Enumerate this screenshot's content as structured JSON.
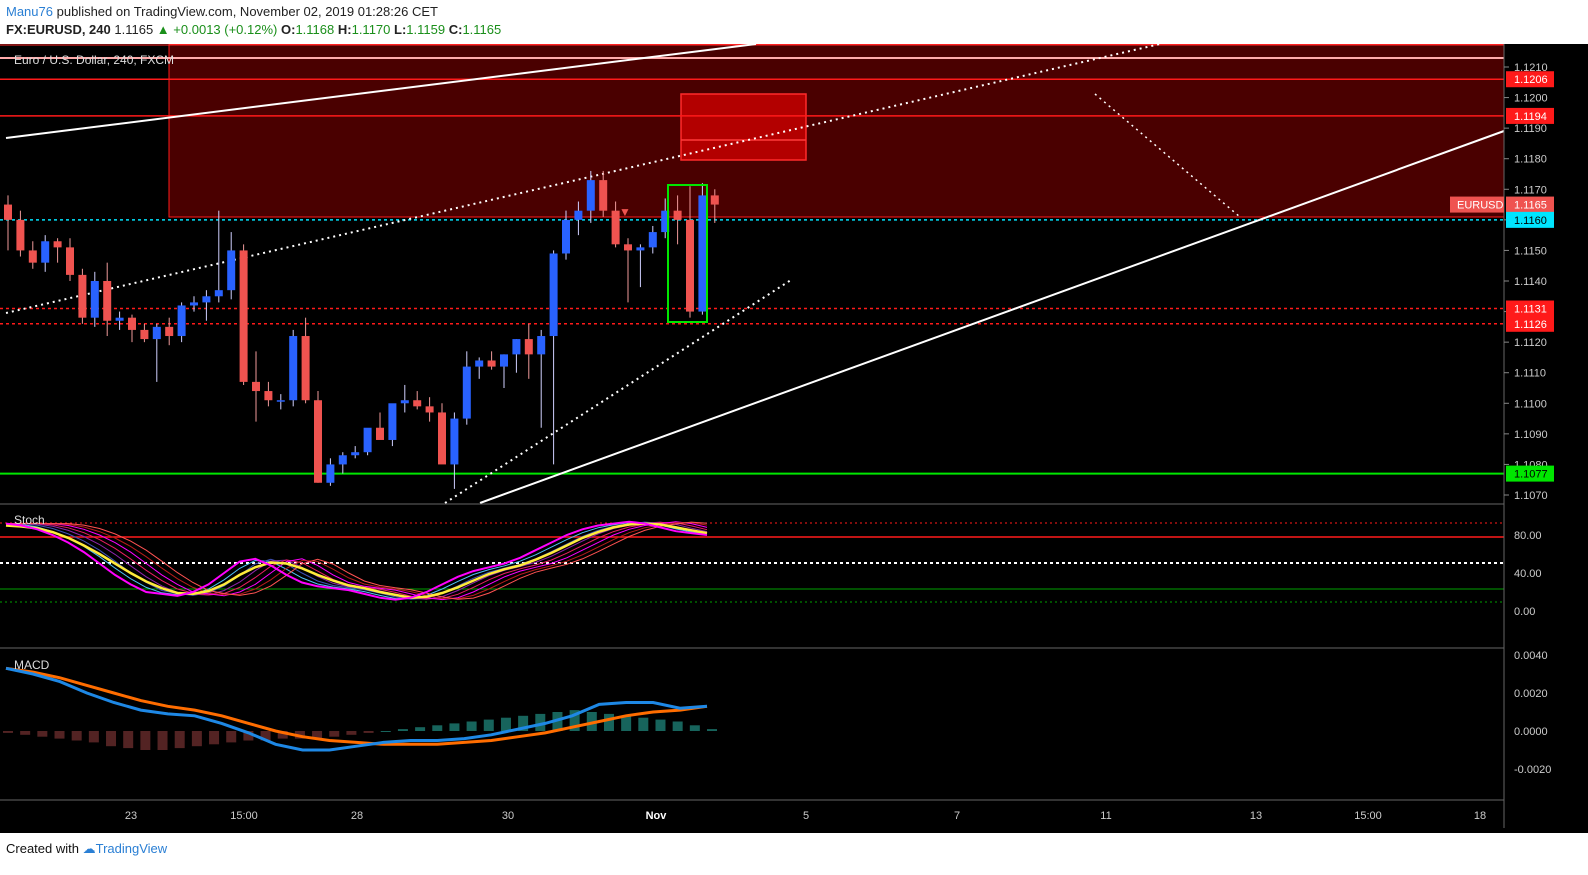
{
  "header": {
    "author": "Manu76",
    "published_text": "published on TradingView.com, November 02, 2019 01:28:26 CET",
    "symbol_label": "FX:EURUSD, 240",
    "last": "1.1165",
    "change": "+0.0013 (+0.12%)",
    "o_label": "O:",
    "o_value": "1.1168",
    "h_label": "H:",
    "h_value": "1.1170",
    "l_label": "L:",
    "l_value": "1.1159",
    "c_label": "C:",
    "c_value": "1.1165"
  },
  "chart_data": [
    {
      "type": "candlestick",
      "title": "Euro / U.S. Dollar, 240, FXCM",
      "ylim": [
        1.1067,
        1.1223
      ],
      "yticks": [
        "1.1070",
        "1.1080",
        "1.1090",
        "1.1100",
        "1.1110",
        "1.1120",
        "1.1130",
        "1.1140",
        "1.1150",
        "1.1160",
        "1.1170",
        "1.1180",
        "1.1190",
        "1.1200",
        "1.1210"
      ],
      "xticks": [
        "23",
        "15:00",
        "28",
        "30",
        "Nov",
        "5",
        "7",
        "11",
        "13",
        "15:00",
        "18"
      ],
      "candles_ohlc": [
        [
          1.1165,
          1.1168,
          1.115,
          1.116
        ],
        [
          1.116,
          1.1163,
          1.1148,
          1.115
        ],
        [
          1.115,
          1.1153,
          1.1144,
          1.1146
        ],
        [
          1.1146,
          1.1155,
          1.1143,
          1.1153
        ],
        [
          1.1153,
          1.1154,
          1.1146,
          1.1151
        ],
        [
          1.1151,
          1.1154,
          1.114,
          1.1142
        ],
        [
          1.1142,
          1.1144,
          1.1126,
          1.1128
        ],
        [
          1.1128,
          1.1143,
          1.1125,
          1.114
        ],
        [
          1.114,
          1.1146,
          1.1122,
          1.1127
        ],
        [
          1.1127,
          1.113,
          1.1124,
          1.1128
        ],
        [
          1.1128,
          1.1129,
          1.112,
          1.1124
        ],
        [
          1.1124,
          1.1126,
          1.112,
          1.1121
        ],
        [
          1.1121,
          1.1126,
          1.1107,
          1.1125
        ],
        [
          1.1125,
          1.1128,
          1.1119,
          1.1122
        ],
        [
          1.1122,
          1.1133,
          1.112,
          1.1132
        ],
        [
          1.1132,
          1.1135,
          1.113,
          1.1133
        ],
        [
          1.1133,
          1.1137,
          1.1127,
          1.1135
        ],
        [
          1.1135,
          1.1163,
          1.1133,
          1.1137
        ],
        [
          1.1137,
          1.1156,
          1.1134,
          1.115
        ],
        [
          1.115,
          1.1152,
          1.1106,
          1.1107
        ],
        [
          1.1107,
          1.1117,
          1.1094,
          1.1104
        ],
        [
          1.1104,
          1.1107,
          1.1099,
          1.1101
        ],
        [
          1.1101,
          1.1103,
          1.1098,
          1.1101
        ],
        [
          1.1101,
          1.1124,
          1.1099,
          1.1122
        ],
        [
          1.1122,
          1.1128,
          1.11,
          1.1101
        ],
        [
          1.1101,
          1.1104,
          1.1074,
          1.1074
        ],
        [
          1.1074,
          1.1082,
          1.1073,
          1.108
        ],
        [
          1.108,
          1.1084,
          1.1077,
          1.1083
        ],
        [
          1.1083,
          1.1086,
          1.1082,
          1.1084
        ],
        [
          1.1084,
          1.1091,
          1.1083,
          1.1092
        ],
        [
          1.1092,
          1.1097,
          1.1089,
          1.1088
        ],
        [
          1.1088,
          1.1099,
          1.1086,
          1.11
        ],
        [
          1.11,
          1.1106,
          1.1097,
          1.1101
        ],
        [
          1.1101,
          1.1104,
          1.1098,
          1.1099
        ],
        [
          1.1099,
          1.1102,
          1.1094,
          1.1097
        ],
        [
          1.1097,
          1.11,
          1.1083,
          1.108
        ],
        [
          1.108,
          1.1097,
          1.1072,
          1.1095
        ],
        [
          1.1095,
          1.1117,
          1.1093,
          1.1112
        ],
        [
          1.1112,
          1.1115,
          1.1108,
          1.1114
        ],
        [
          1.1114,
          1.1117,
          1.1111,
          1.1112
        ],
        [
          1.1112,
          1.1116,
          1.1105,
          1.1116
        ],
        [
          1.1116,
          1.1121,
          1.111,
          1.1121
        ],
        [
          1.1121,
          1.1126,
          1.1108,
          1.1116
        ],
        [
          1.1116,
          1.1124,
          1.1092,
          1.1122
        ],
        [
          1.1122,
          1.115,
          1.108,
          1.1149
        ],
        [
          1.1149,
          1.1163,
          1.1147,
          1.116
        ],
        [
          1.116,
          1.1166,
          1.1155,
          1.1163
        ],
        [
          1.1163,
          1.1176,
          1.1159,
          1.1173
        ],
        [
          1.1173,
          1.1176,
          1.1161,
          1.1163
        ],
        [
          1.1163,
          1.1166,
          1.1151,
          1.1152
        ],
        [
          1.1152,
          1.1154,
          1.1133,
          1.115
        ],
        [
          1.115,
          1.1152,
          1.1138,
          1.1151
        ],
        [
          1.1151,
          1.1158,
          1.1149,
          1.1156
        ],
        [
          1.1156,
          1.1167,
          1.1154,
          1.1163
        ],
        [
          1.1163,
          1.1168,
          1.1152,
          1.116
        ],
        [
          1.116,
          1.1171,
          1.1128,
          1.113
        ],
        [
          1.113,
          1.1172,
          1.1129,
          1.1168
        ],
        [
          1.1168,
          1.117,
          1.1159,
          1.1165
        ]
      ],
      "levels": [
        {
          "value": 1.1206,
          "label": "1.1206",
          "color": "#ff1a1a"
        },
        {
          "value": 1.1194,
          "label": "1.1194",
          "color": "#ff1a1a"
        },
        {
          "value": 1.1165,
          "label": "1.1165",
          "color": "#ef5350",
          "tag": "EURUSD"
        },
        {
          "value": 1.116,
          "label": "1.1160",
          "color": "#00e5ff"
        },
        {
          "value": 1.1131,
          "label": "1.1131",
          "color": "#ff1a1a"
        },
        {
          "value": 1.1126,
          "label": "1.1126",
          "color": "#ff1a1a"
        },
        {
          "value": 1.1077,
          "label": "1.1077",
          "color": "#00e600"
        }
      ],
      "colors": {
        "up": "#2962ff",
        "down": "#ef5350",
        "zone": "#4a0000",
        "background": "#000000",
        "axis_text": "#cccccc"
      }
    },
    {
      "type": "line",
      "title": "Stoch",
      "ylim": [
        -5,
        105
      ],
      "yticks": [
        "80.00",
        "40.00",
        "0.00"
      ],
      "k": [
        92,
        90,
        86,
        80,
        72,
        62,
        50,
        38,
        28,
        20,
        18,
        16,
        20,
        28,
        40,
        52,
        55,
        48,
        38,
        30,
        26,
        24,
        22,
        18,
        14,
        12,
        14,
        20,
        28,
        36,
        42,
        46,
        50,
        56,
        64,
        72,
        80,
        86,
        90,
        92,
        94,
        92,
        88,
        84,
        82,
        80
      ],
      "d": [
        90,
        89,
        87,
        83,
        77,
        69,
        60,
        50,
        40,
        31,
        24,
        19,
        18,
        21,
        28,
        38,
        46,
        51,
        50,
        45,
        38,
        32,
        27,
        24,
        20,
        17,
        14,
        15,
        19,
        25,
        32,
        39,
        44,
        48,
        54,
        61,
        69,
        77,
        83,
        88,
        91,
        92,
        91,
        88,
        85,
        82
      ]
    },
    {
      "type": "line",
      "title": "MACD",
      "ylim": [
        -0.003,
        0.0043
      ],
      "yticks": [
        "0.0040",
        "0.0020",
        "0.0000",
        "-0.0020"
      ],
      "macd": [
        0.0033,
        0.003,
        0.0026,
        0.002,
        0.0015,
        0.0011,
        0.0009,
        0.0008,
        0.0004,
        -0.0001,
        -0.0007,
        -0.001,
        -0.001,
        -0.0008,
        -0.0006,
        -0.0005,
        -0.0005,
        -0.0004,
        -0.0002,
        0.0001,
        0.0004,
        0.0008,
        0.0014,
        0.0015,
        0.0015,
        0.0012,
        0.0013
      ],
      "signal": [
        0.0033,
        0.0031,
        0.0028,
        0.0024,
        0.002,
        0.0016,
        0.0013,
        0.0011,
        0.0008,
        0.0004,
        0.0,
        -0.0003,
        -0.0005,
        -0.0006,
        -0.0007,
        -0.0007,
        -0.0007,
        -0.0006,
        -0.0005,
        -0.0003,
        -0.0001,
        0.0002,
        0.0005,
        0.0008,
        0.001,
        0.0011,
        0.0013
      ],
      "histogram": [
        -0.0001,
        -0.0002,
        -0.0003,
        -0.0004,
        -0.0005,
        -0.0006,
        -0.0008,
        -0.0009,
        -0.001,
        -0.001,
        -0.0009,
        -0.0008,
        -0.0007,
        -0.0006,
        -0.0005,
        -0.0005,
        -0.0004,
        -0.0004,
        -0.0004,
        -0.0003,
        -0.0002,
        -0.0001,
        0.0,
        0.0001,
        0.0002,
        0.0003,
        0.0004,
        0.0005,
        0.0006,
        0.0007,
        0.0008,
        0.0009,
        0.001,
        0.0011,
        0.001,
        0.0009,
        0.0008,
        0.0007,
        0.0006,
        0.0005,
        0.0003,
        0.0001
      ],
      "colors": {
        "macd": "#1e88e5",
        "signal": "#ff6d00"
      }
    }
  ],
  "footer": {
    "created_with": "Created with",
    "brand": "TradingView"
  }
}
